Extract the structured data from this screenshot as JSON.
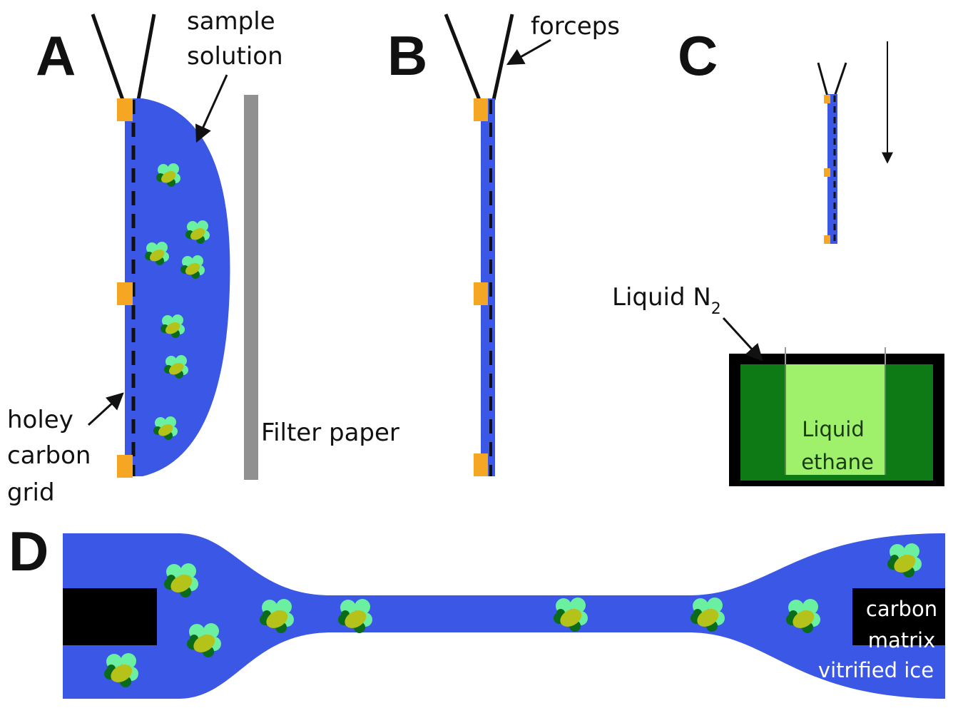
{
  "panels": {
    "a": {
      "letter": "A",
      "sample_solution_label": [
        "sample",
        "solution"
      ],
      "grid_label": [
        "holey",
        "carbon",
        "grid"
      ],
      "filter_paper_label": "Filter paper"
    },
    "b": {
      "letter": "B",
      "forceps_label": "forceps"
    },
    "c": {
      "letter": "C",
      "liquid_n2_label": "Liquid N",
      "liquid_n2_subscript": "2",
      "ethane_label": [
        "Liquid",
        "ethane"
      ]
    },
    "d": {
      "letter": "D",
      "carbon_matrix_label": [
        "carbon",
        "matrix"
      ],
      "vitrified_ice_label": "vitrified ice"
    }
  },
  "colors": {
    "solution_blue": "#3b57e6",
    "grid_orange": "#f5a623",
    "filter_gray": "#909090",
    "ln2_green": "#0e7a16",
    "ethane_green": "#9ff06a",
    "particle_light": "#6af0a0",
    "particle_dark": "#0a6b1a",
    "particle_olive": "#b4c21a",
    "carbon_black": "#000000"
  },
  "icons": {
    "particle": "protein-complex-icon",
    "arrow": "pointer-arrow-icon"
  }
}
